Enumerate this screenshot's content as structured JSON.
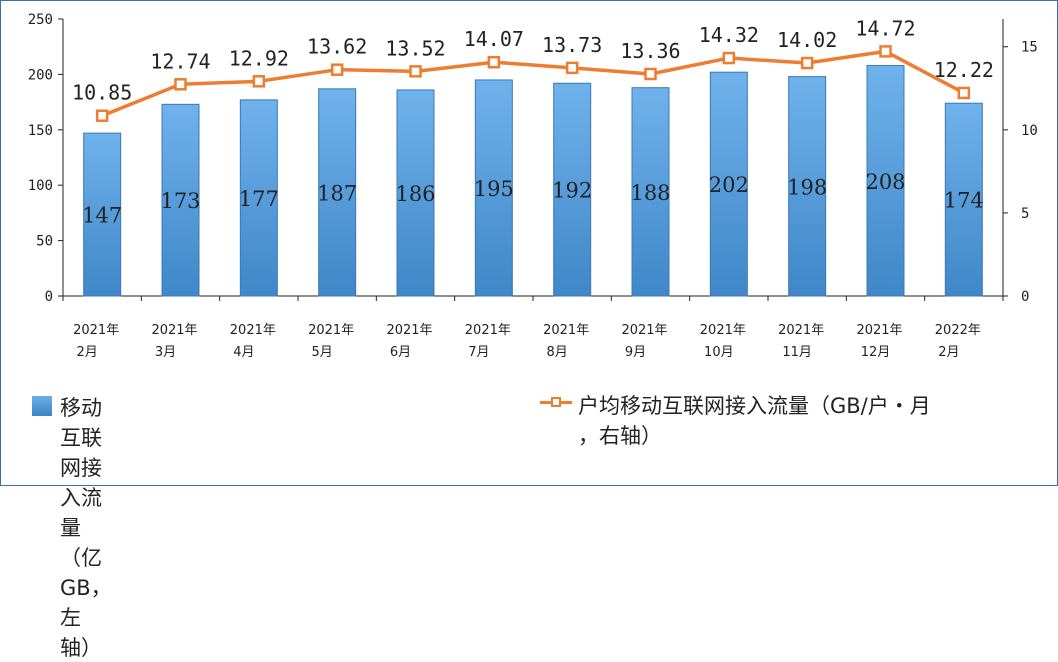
{
  "chart_data": {
    "type": "bar+line",
    "categories": [
      [
        "2021年",
        "2月"
      ],
      [
        "2021年",
        "3月"
      ],
      [
        "2021年",
        "4月"
      ],
      [
        "2021年",
        "5月"
      ],
      [
        "2021年",
        "6月"
      ],
      [
        "2021年",
        "7月"
      ],
      [
        "2021年",
        "8月"
      ],
      [
        "2021年",
        "9月"
      ],
      [
        "2021年",
        "10月"
      ],
      [
        "2021年",
        "11月"
      ],
      [
        "2021年",
        "12月"
      ],
      [
        "2022年",
        "2月"
      ]
    ],
    "series": [
      {
        "name": "移动互联网接入流量（亿GB，左轴）",
        "type": "bar",
        "axis": "left",
        "color": "#4f9ee0",
        "values": [
          147,
          173,
          177,
          187,
          186,
          195,
          192,
          188,
          202,
          198,
          208,
          174
        ]
      },
      {
        "name": "户均移动互联网接入流量（GB/户・月，右轴）",
        "type": "line",
        "axis": "right",
        "color": "#ed7d31",
        "values": [
          10.85,
          12.74,
          12.92,
          13.62,
          13.52,
          14.07,
          13.73,
          13.36,
          14.32,
          14.02,
          14.72,
          12.22
        ]
      }
    ],
    "y_left": {
      "min": 0,
      "max": 250,
      "ticks": [
        0,
        50,
        100,
        150,
        200,
        250
      ]
    },
    "y_right": {
      "min": 0,
      "max": 16.67,
      "ticks": [
        0,
        5,
        10,
        15
      ]
    },
    "legend_position": "bottom"
  },
  "legend": {
    "bar_label": "移动互联网接入流量（亿GB，左轴）",
    "line_label_1": "户均移动互联网接入流量（GB/户・月",
    "line_label_2": "，右轴）"
  }
}
